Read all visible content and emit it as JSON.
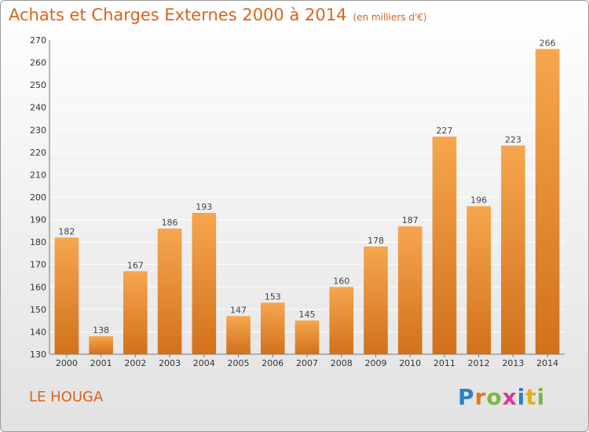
{
  "title": "Achats et Charges Externes 2000 à 2014",
  "units": "(en milliers d'€)",
  "location": "LE HOUGA",
  "logo": {
    "text": "Proxiti",
    "letter_colors": [
      "#2f7fc4",
      "#e07a1f",
      "#7ab648",
      "#d93a8a",
      "#2f7fc4",
      "#e0b11f",
      "#7ab648"
    ]
  },
  "colors": {
    "bar_top": "#f6a64e",
    "bar_bottom": "#d2711c",
    "accent": "#d9641b",
    "grid": "#ffffff"
  },
  "chart_data": {
    "type": "bar",
    "categories": [
      "2000",
      "2001",
      "2002",
      "2003",
      "2004",
      "2005",
      "2006",
      "2007",
      "2008",
      "2009",
      "2010",
      "2011",
      "2012",
      "2013",
      "2014"
    ],
    "values": [
      182,
      138,
      167,
      186,
      193,
      147,
      153,
      145,
      160,
      178,
      187,
      227,
      196,
      223,
      266
    ],
    "ylim": [
      130,
      270
    ],
    "yticks": [
      130,
      140,
      150,
      160,
      170,
      180,
      190,
      200,
      210,
      220,
      230,
      240,
      250,
      260,
      270
    ],
    "grid": true,
    "data_labels": true,
    "xlabel": "",
    "ylabel": ""
  }
}
